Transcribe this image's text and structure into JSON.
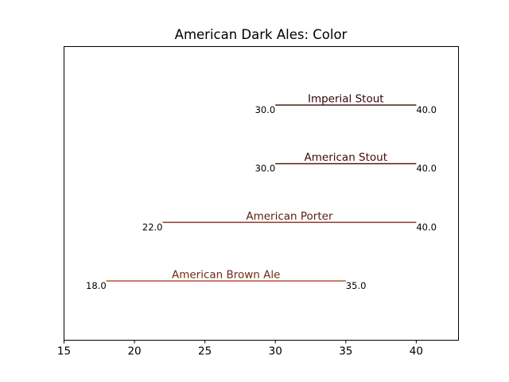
{
  "chart_data": {
    "type": "range",
    "title": "American Dark Ales: Color",
    "xlabel": "",
    "ylabel": "",
    "xlim": [
      15,
      43
    ],
    "xticks": [
      15,
      20,
      25,
      30,
      35,
      40
    ],
    "grid": false,
    "series": [
      {
        "name": "American Brown Ale",
        "low": 18.0,
        "high": 35.0,
        "low_label": "18.0",
        "high_label": "35.0",
        "color": "#b4553a",
        "label_color": "#6e2a14"
      },
      {
        "name": "American Porter",
        "low": 22.0,
        "high": 40.0,
        "low_label": "22.0",
        "high_label": "40.0",
        "color": "#8a3a2a",
        "label_color": "#5a1e10"
      },
      {
        "name": "American Stout",
        "low": 30.0,
        "high": 40.0,
        "low_label": "30.0",
        "high_label": "40.0",
        "color": "#5c1e14",
        "label_color": "#3c0c06"
      },
      {
        "name": "Imperial Stout",
        "low": 30.0,
        "high": 40.0,
        "low_label": "30.0",
        "high_label": "40.0",
        "color": "#4a1a12",
        "label_color": "#300404"
      }
    ]
  }
}
